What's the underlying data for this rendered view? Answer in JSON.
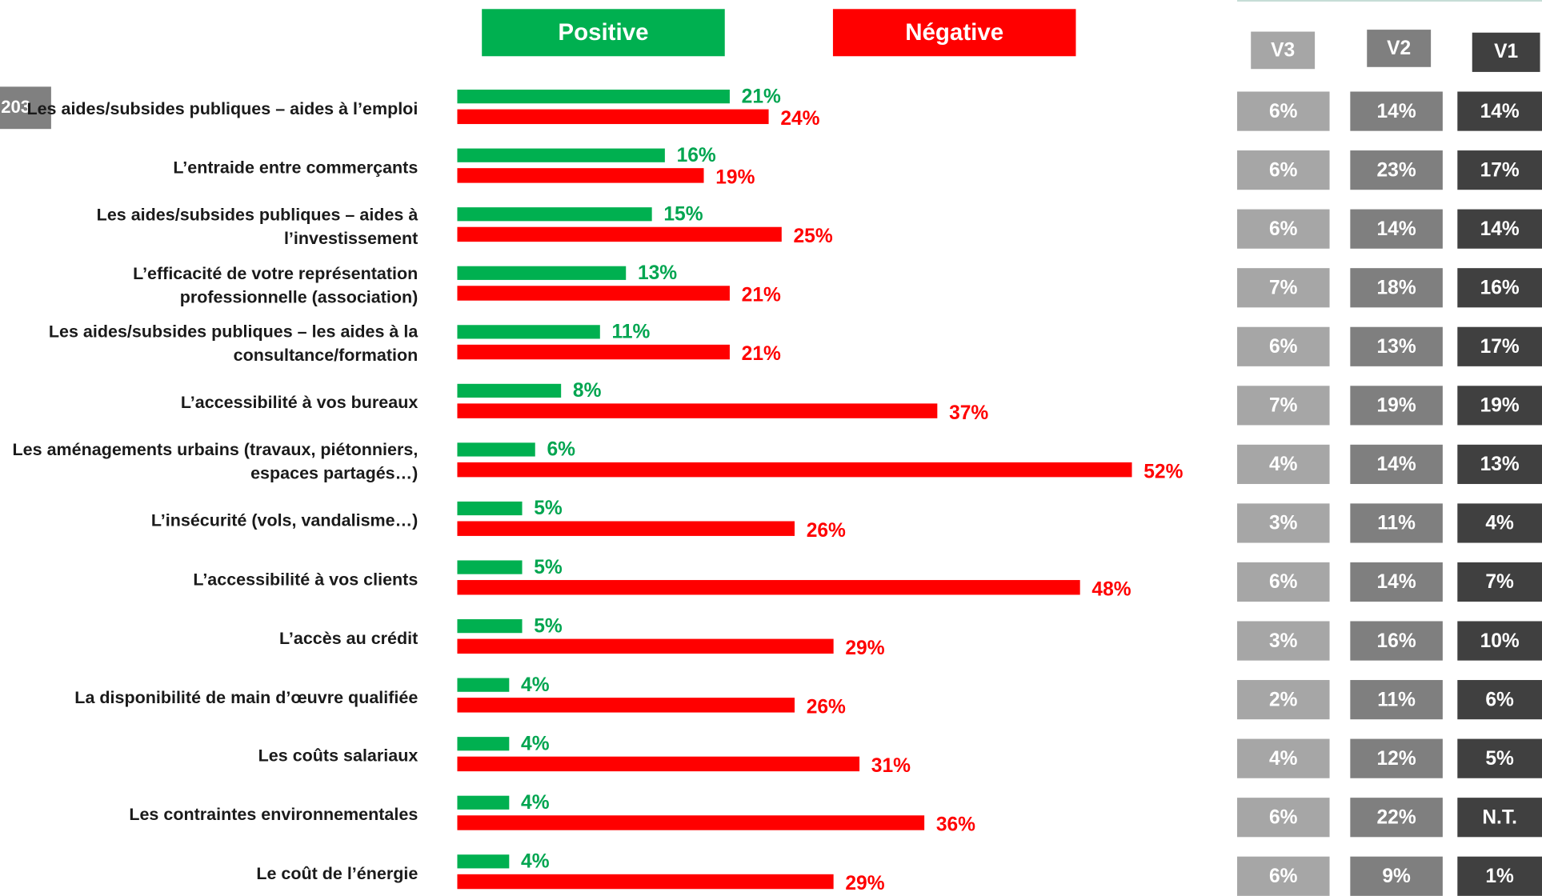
{
  "chart_data": {
    "type": "bar",
    "orientation": "horizontal",
    "badge": "203",
    "categories": [
      "Les aides/subsides publiques – aides à l’emploi",
      "L’entraide entre commerçants",
      "Les aides/subsides publiques – aides à l’investissement",
      "L’efficacité de votre représentation professionnelle (association)",
      "Les aides/subsides publiques – les aides à la consultance/formation",
      "L’accessibilité à vos bureaux",
      "Les aménagements urbains (travaux, piétonniers, espaces partagés…)",
      "L’insécurité (vols, vandalisme…)",
      "L’accessibilité à vos clients",
      "L’accès au crédit",
      "La disponibilité de main d’œuvre qualifiée",
      "Les coûts salariaux",
      "Les contraintes environnementales",
      "Le coût de l’énergie"
    ],
    "series": [
      {
        "name": "Positive",
        "color": "#00b050",
        "label_color": "#00a550",
        "values": [
          21,
          16,
          15,
          13,
          11,
          8,
          6,
          5,
          5,
          5,
          4,
          4,
          4,
          4
        ],
        "value_labels": [
          "21%",
          "16%",
          "15%",
          "13%",
          "11%",
          "8%",
          "6%",
          "5%",
          "5%",
          "5%",
          "4%",
          "4%",
          "4%",
          "4%"
        ]
      },
      {
        "name": "Négative",
        "color": "#ff0000",
        "label_color": "#ff0000",
        "values": [
          24,
          19,
          25,
          21,
          21,
          37,
          52,
          26,
          48,
          29,
          26,
          31,
          36,
          29
        ],
        "value_labels": [
          "24%",
          "19%",
          "25%",
          "21%",
          "21%",
          "37%",
          "52%",
          "26%",
          "48%",
          "29%",
          "26%",
          "31%",
          "36%",
          "29%"
        ]
      }
    ]
  },
  "table": {
    "columns": [
      "V3",
      "V2",
      "V1"
    ],
    "colors": [
      "#a6a6a6",
      "#7f7f7f",
      "#404040"
    ],
    "rows": [
      [
        "6%",
        "14%",
        "14%"
      ],
      [
        "6%",
        "23%",
        "17%"
      ],
      [
        "6%",
        "14%",
        "14%"
      ],
      [
        "7%",
        "18%",
        "16%"
      ],
      [
        "6%",
        "13%",
        "17%"
      ],
      [
        "7%",
        "19%",
        "19%"
      ],
      [
        "4%",
        "14%",
        "13%"
      ],
      [
        "3%",
        "11%",
        "4%"
      ],
      [
        "6%",
        "14%",
        "7%"
      ],
      [
        "3%",
        "16%",
        "10%"
      ],
      [
        "2%",
        "11%",
        "6%"
      ],
      [
        "4%",
        "12%",
        "5%"
      ],
      [
        "6%",
        "22%",
        "N.T."
      ],
      [
        "6%",
        "9%",
        "1%"
      ]
    ]
  }
}
